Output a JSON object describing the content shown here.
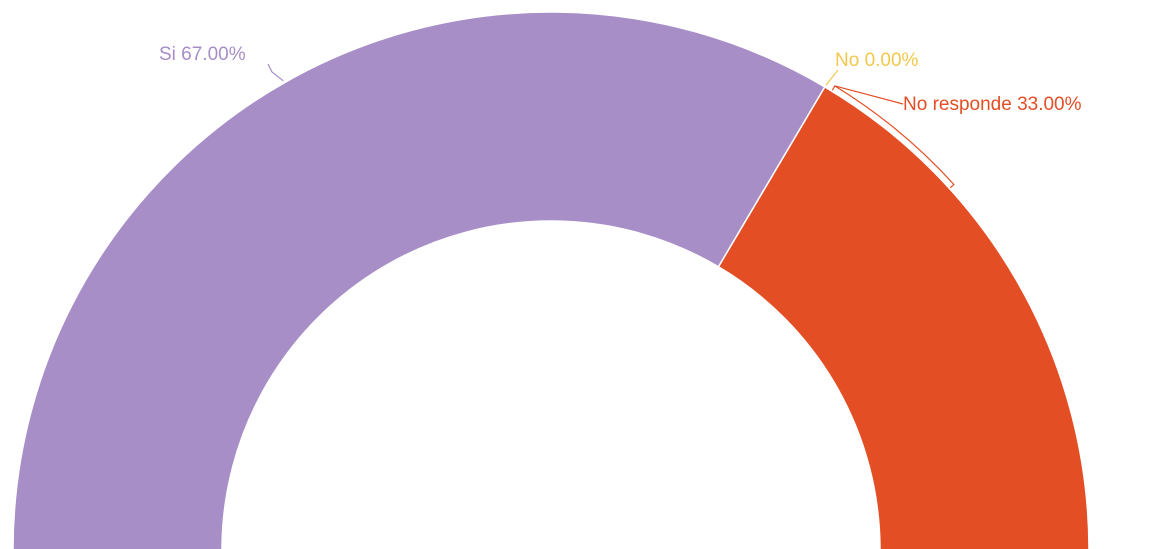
{
  "chart_data": {
    "type": "pie",
    "variant": "semi-donut",
    "title": "",
    "legend": "none",
    "slices": [
      {
        "label": "Si",
        "value": 67.0,
        "display": "Si 67.00%",
        "color": "#a78ec7"
      },
      {
        "label": "No",
        "value": 0.0,
        "display": "No 0.00%",
        "color": "#f2c84b"
      },
      {
        "label": "No responde",
        "value": 33.0,
        "display": "No responde 33.00%",
        "color": "#e34e24"
      }
    ]
  }
}
